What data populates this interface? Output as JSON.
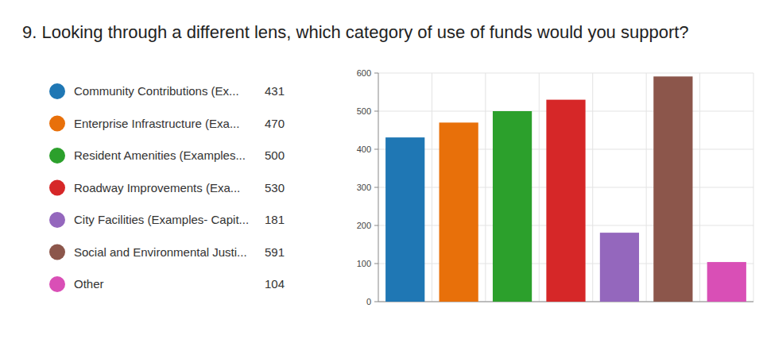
{
  "chart_data": {
    "type": "bar",
    "title": "9. Looking through a different lens, which category of use of funds would you support?",
    "categories": [
      "Community Contributions (Ex...",
      "Enterprise Infrastructure (Exa...",
      "Resident Amenities (Examples...",
      "Roadway Improvements (Exa...",
      "City Facilities (Examples- Capit...",
      "Social and Environmental Justi...",
      "Other"
    ],
    "values": [
      431,
      470,
      500,
      530,
      181,
      591,
      104
    ],
    "colors": [
      "#1f77b4",
      "#e8700a",
      "#2ca02c",
      "#d62728",
      "#9467bd",
      "#8c564b",
      "#d94fb6"
    ],
    "ylim": [
      0,
      600
    ],
    "yticks": [
      0,
      100,
      200,
      300,
      400,
      500,
      600
    ],
    "grid": true,
    "legend": "left",
    "tick_labels": "y"
  }
}
